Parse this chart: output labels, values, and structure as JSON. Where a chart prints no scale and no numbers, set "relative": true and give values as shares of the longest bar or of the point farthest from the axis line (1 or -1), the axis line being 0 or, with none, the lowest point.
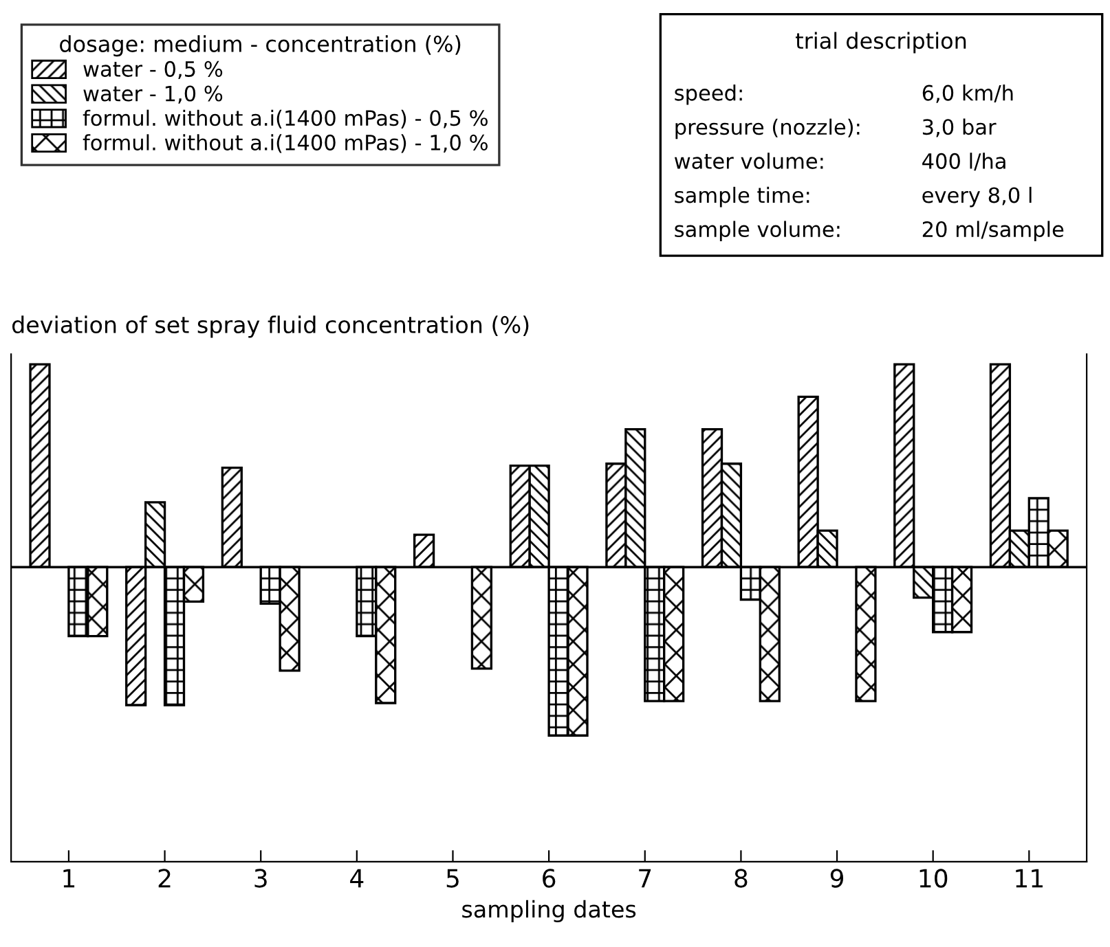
{
  "chart_data": {
    "type": "bar",
    "relative": true,
    "xlabel": "sampling dates",
    "ylabel": "deviation of set spray fluid concentration (%)",
    "legend_title": "dosage: medium - concentration (%)",
    "legend": "top left",
    "categories": [
      "1",
      "2",
      "3",
      "4",
      "5",
      "6",
      "7",
      "8",
      "9",
      "10",
      "11"
    ],
    "series": [
      {
        "name": "water - 0,5 %",
        "color": "#ffffff",
        "values": [
          1.0,
          -0.68,
          0.49,
          0.0,
          0.16,
          0.5,
          0.51,
          0.68,
          0.84,
          1.0,
          1.0
        ]
      },
      {
        "name": "water - 1,0 %",
        "color": "#ffffff",
        "values": [
          0.0,
          0.32,
          0.0,
          0.0,
          0.0,
          0.5,
          0.68,
          0.51,
          0.18,
          -0.15,
          0.18
        ]
      },
      {
        "name": "formul. without a.i(1400 mPas) - 0,5 %",
        "color": "#ffffff",
        "values": [
          -0.34,
          -0.68,
          -0.18,
          -0.34,
          0.0,
          -0.83,
          -0.66,
          -0.16,
          0.0,
          -0.32,
          0.34
        ]
      },
      {
        "name": "formul. without a.i(1400 mPas) - 1,0 %",
        "color": "#ffffff",
        "values": [
          -0.34,
          -0.17,
          -0.51,
          -0.67,
          -0.5,
          -0.83,
          -0.66,
          -0.66,
          -0.66,
          -0.32,
          0.18
        ]
      }
    ],
    "annotations": [
      "trial description",
      "speed:",
      "6,0 km/h",
      "pressure (nozzle):",
      "3,0 bar",
      "water volume:",
      "400 l/ha",
      "sample time:",
      "every 8,0 l",
      "sample volume:",
      "20 ml/sample"
    ],
    "grid": false
  }
}
